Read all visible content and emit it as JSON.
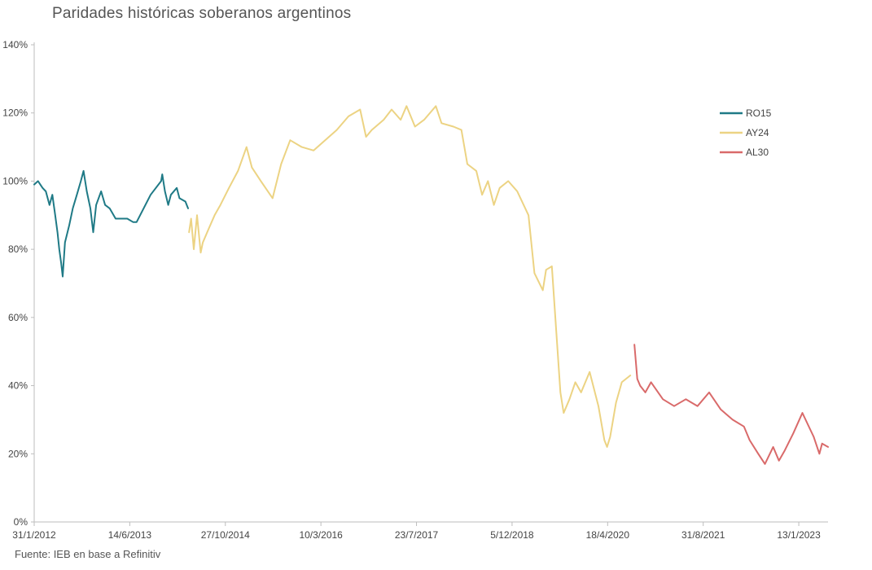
{
  "chart_data": {
    "type": "line",
    "title": "Paridades históricas soberanos argentinos",
    "source": "Fuente: IEB en base a Refinitiv",
    "xlabel": "",
    "ylabel": "",
    "y_tick_labels": [
      "0%",
      "20%",
      "40%",
      "60%",
      "80%",
      "100%",
      "120%",
      "140%"
    ],
    "x_tick_labels": [
      "31/1/2012",
      "14/6/2013",
      "27/10/2014",
      "10/3/2016",
      "23/7/2017",
      "5/12/2018",
      "18/4/2020",
      "31/8/2021",
      "13/1/2023"
    ],
    "ylim": [
      0,
      140
    ],
    "xlim": [
      "31/1/2012",
      "15/6/2023"
    ],
    "grid": false,
    "legend_position": "right",
    "series": [
      {
        "name": "RO15",
        "color": "#1f7a86",
        "points": [
          [
            "31/1/2012",
            99
          ],
          [
            "20/2/2012",
            100
          ],
          [
            "15/3/2012",
            98
          ],
          [
            "1/4/2012",
            97
          ],
          [
            "20/4/2012",
            93
          ],
          [
            "5/5/2012",
            96
          ],
          [
            "20/5/2012",
            90
          ],
          [
            "1/6/2012",
            85
          ],
          [
            "10/6/2012",
            80
          ],
          [
            "20/6/2012",
            76
          ],
          [
            "28/6/2012",
            72
          ],
          [
            "10/7/2012",
            82
          ],
          [
            "1/8/2012",
            87
          ],
          [
            "20/8/2012",
            92
          ],
          [
            "10/9/2012",
            96
          ],
          [
            "1/10/2012",
            100
          ],
          [
            "15/10/2012",
            103
          ],
          [
            "1/11/2012",
            97
          ],
          [
            "20/11/2012",
            92
          ],
          [
            "5/12/2012",
            85
          ],
          [
            "20/12/2012",
            93
          ],
          [
            "15/1/2013",
            97
          ],
          [
            "5/2/2013",
            93
          ],
          [
            "1/3/2013",
            92
          ],
          [
            "1/4/2013",
            89
          ],
          [
            "1/5/2013",
            89
          ],
          [
            "1/6/2013",
            89
          ],
          [
            "1/7/2013",
            88
          ],
          [
            "20/7/2013",
            88
          ],
          [
            "1/10/2013",
            96
          ],
          [
            "25/11/2013",
            100
          ],
          [
            "1/12/2013",
            102
          ],
          [
            "15/12/2013",
            97
          ],
          [
            "1/1/2014",
            93
          ],
          [
            "15/1/2014",
            96
          ],
          [
            "15/2/2014",
            98
          ],
          [
            "1/3/2014",
            95
          ],
          [
            "1/4/2014",
            94
          ],
          [
            "15/4/2014",
            92
          ]
        ]
      },
      {
        "name": "AY24",
        "color": "#ecd383",
        "points": [
          [
            "20/4/2014",
            85
          ],
          [
            "1/5/2014",
            89
          ],
          [
            "15/5/2014",
            80
          ],
          [
            "1/6/2014",
            90
          ],
          [
            "20/6/2014",
            79
          ],
          [
            "1/7/2014",
            82
          ],
          [
            "1/8/2014",
            86
          ],
          [
            "1/9/2014",
            90
          ],
          [
            "1/10/2014",
            93
          ],
          [
            "15/11/2014",
            98
          ],
          [
            "1/1/2015",
            103
          ],
          [
            "15/2/2015",
            110
          ],
          [
            "15/3/2015",
            104
          ],
          [
            "1/5/2015",
            100
          ],
          [
            "1/7/2015",
            95
          ],
          [
            "15/8/2015",
            105
          ],
          [
            "1/10/2015",
            112
          ],
          [
            "1/12/2015",
            110
          ],
          [
            "1/2/2016",
            109
          ],
          [
            "1/4/2016",
            112
          ],
          [
            "1/6/2016",
            115
          ],
          [
            "1/8/2016",
            119
          ],
          [
            "1/10/2016",
            121
          ],
          [
            "1/11/2016",
            113
          ],
          [
            "1/12/2016",
            115
          ],
          [
            "1/2/2017",
            118
          ],
          [
            "15/3/2017",
            121
          ],
          [
            "1/5/2017",
            118
          ],
          [
            "1/6/2017",
            122
          ],
          [
            "15/7/2017",
            116
          ],
          [
            "1/9/2017",
            118
          ],
          [
            "1/11/2017",
            122
          ],
          [
            "1/12/2017",
            117
          ],
          [
            "1/2/2018",
            116
          ],
          [
            "15/3/2018",
            115
          ],
          [
            "15/4/2018",
            105
          ],
          [
            "1/6/2018",
            103
          ],
          [
            "1/7/2018",
            96
          ],
          [
            "1/8/2018",
            100
          ],
          [
            "1/9/2018",
            93
          ],
          [
            "1/10/2018",
            98
          ],
          [
            "15/11/2018",
            100
          ],
          [
            "1/1/2019",
            97
          ],
          [
            "1/3/2019",
            90
          ],
          [
            "1/4/2019",
            73
          ],
          [
            "15/5/2019",
            68
          ],
          [
            "1/6/2019",
            74
          ],
          [
            "1/7/2019",
            75
          ],
          [
            "15/8/2019",
            38
          ],
          [
            "1/9/2019",
            32
          ],
          [
            "1/10/2019",
            36
          ],
          [
            "1/11/2019",
            41
          ],
          [
            "1/12/2019",
            38
          ],
          [
            "15/1/2020",
            44
          ],
          [
            "1/3/2020",
            34
          ],
          [
            "1/4/2020",
            24
          ],
          [
            "15/4/2020",
            22
          ],
          [
            "1/5/2020",
            25
          ],
          [
            "1/6/2020",
            35
          ],
          [
            "1/7/2020",
            41
          ],
          [
            "15/8/2020",
            43
          ]
        ]
      },
      {
        "name": "AL30",
        "color": "#d96a6a",
        "points": [
          [
            "5/9/2020",
            52
          ],
          [
            "20/9/2020",
            42
          ],
          [
            "5/10/2020",
            40
          ],
          [
            "1/11/2020",
            38
          ],
          [
            "1/12/2020",
            41
          ],
          [
            "1/2/2021",
            36
          ],
          [
            "1/4/2021",
            34
          ],
          [
            "1/6/2021",
            36
          ],
          [
            "1/8/2021",
            34
          ],
          [
            "1/10/2021",
            38
          ],
          [
            "1/12/2021",
            33
          ],
          [
            "1/2/2022",
            30
          ],
          [
            "1/4/2022",
            28
          ],
          [
            "1/5/2022",
            24
          ],
          [
            "15/6/2022",
            20
          ],
          [
            "20/7/2022",
            17
          ],
          [
            "1/9/2022",
            22
          ],
          [
            "1/10/2022",
            18
          ],
          [
            "1/11/2022",
            21
          ],
          [
            "15/12/2022",
            26
          ],
          [
            "1/2/2023",
            32
          ],
          [
            "15/3/2023",
            27
          ],
          [
            "1/4/2023",
            25
          ],
          [
            "1/5/2023",
            20
          ],
          [
            "15/5/2023",
            23
          ],
          [
            "15/6/2023",
            22
          ]
        ]
      }
    ]
  }
}
